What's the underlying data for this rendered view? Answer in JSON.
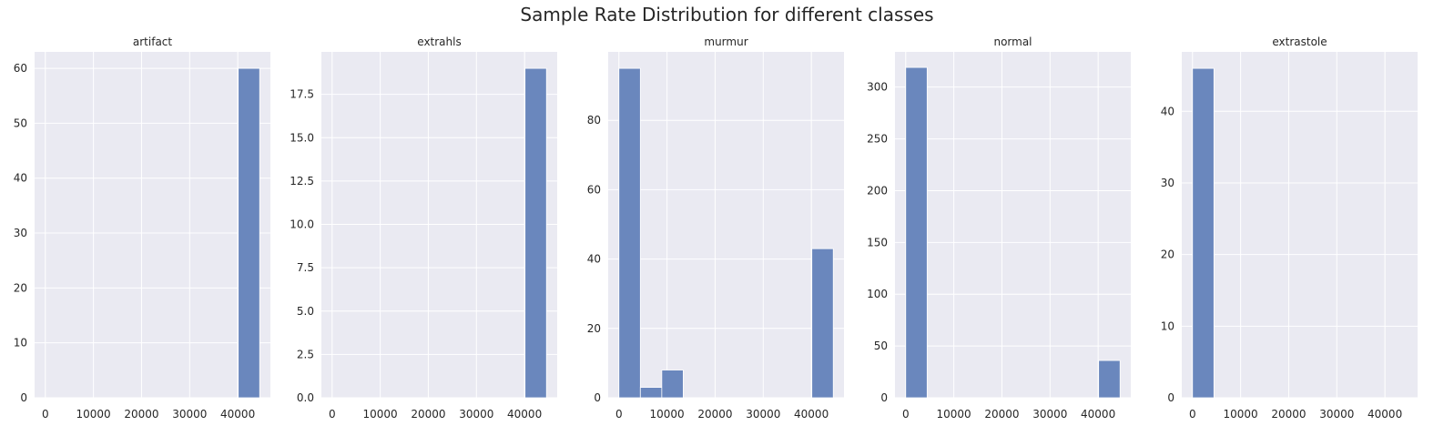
{
  "figure_title": "Sample Rate Distribution for different classes",
  "colors": {
    "panel_bg": "#eaeaf2",
    "grid": "#ffffff",
    "bar": "#6a87bd",
    "bar_edge": "#ffffff",
    "text": "#262626"
  },
  "chart_data": [
    {
      "type": "bar",
      "title": "artifact",
      "xlabel": "",
      "ylabel": "",
      "grid": true,
      "xlim": [
        -2228,
        46787
      ],
      "ylim": [
        0,
        63
      ],
      "x_ticks": [
        "0",
        "10000",
        "20000",
        "30000",
        "40000"
      ],
      "y_ticks": [
        "0",
        "10",
        "20",
        "30",
        "40",
        "50",
        "60"
      ],
      "bins": [
        {
          "x0": 40100,
          "x1": 44559,
          "value": 60
        }
      ]
    },
    {
      "type": "bar",
      "title": "extrahls",
      "xlabel": "",
      "ylabel": "",
      "grid": true,
      "xlim": [
        -2228,
        46787
      ],
      "ylim": [
        0,
        19.95
      ],
      "x_ticks": [
        "0",
        "10000",
        "20000",
        "30000",
        "40000"
      ],
      "y_ticks": [
        "0.0",
        "2.5",
        "5.0",
        "7.5",
        "10.0",
        "12.5",
        "15.0",
        "17.5"
      ],
      "bins": [
        {
          "x0": 40100,
          "x1": 44559,
          "value": 19
        }
      ]
    },
    {
      "type": "bar",
      "title": "murmur",
      "xlabel": "",
      "ylabel": "",
      "grid": true,
      "xlim": [
        -2228,
        46787
      ],
      "ylim": [
        0,
        99.75
      ],
      "x_ticks": [
        "0",
        "10000",
        "20000",
        "30000",
        "40000"
      ],
      "y_ticks": [
        "0",
        "20",
        "40",
        "60",
        "80"
      ],
      "bins": [
        {
          "x0": 0,
          "x1": 4456,
          "value": 95
        },
        {
          "x0": 4456,
          "x1": 8912,
          "value": 3
        },
        {
          "x0": 8912,
          "x1": 13368,
          "value": 8
        },
        {
          "x0": 13368,
          "x1": 17824,
          "value": 0
        },
        {
          "x0": 17824,
          "x1": 22280,
          "value": 0
        },
        {
          "x0": 22280,
          "x1": 26735,
          "value": 0
        },
        {
          "x0": 26735,
          "x1": 31191,
          "value": 0
        },
        {
          "x0": 31191,
          "x1": 35647,
          "value": 0
        },
        {
          "x0": 35647,
          "x1": 40103,
          "value": 0
        },
        {
          "x0": 40103,
          "x1": 44559,
          "value": 43
        }
      ]
    },
    {
      "type": "bar",
      "title": "normal",
      "xlabel": "",
      "ylabel": "",
      "grid": true,
      "xlim": [
        -2228,
        46787
      ],
      "ylim": [
        0,
        334
      ],
      "x_ticks": [
        "0",
        "10000",
        "20000",
        "30000",
        "40000"
      ],
      "y_ticks": [
        "0",
        "50",
        "100",
        "150",
        "200",
        "250",
        "300"
      ],
      "bins": [
        {
          "x0": 0,
          "x1": 4456,
          "value": 319
        },
        {
          "x0": 4456,
          "x1": 8912,
          "value": 0
        },
        {
          "x0": 8912,
          "x1": 13368,
          "value": 0
        },
        {
          "x0": 13368,
          "x1": 17824,
          "value": 0
        },
        {
          "x0": 17824,
          "x1": 22280,
          "value": 0
        },
        {
          "x0": 22280,
          "x1": 26735,
          "value": 0
        },
        {
          "x0": 26735,
          "x1": 31191,
          "value": 0
        },
        {
          "x0": 31191,
          "x1": 35647,
          "value": 0
        },
        {
          "x0": 35647,
          "x1": 40103,
          "value": 0
        },
        {
          "x0": 40103,
          "x1": 44559,
          "value": 36
        }
      ]
    },
    {
      "type": "bar",
      "title": "extrastole",
      "xlabel": "",
      "ylabel": "",
      "grid": true,
      "xlim": [
        -2228,
        46787
      ],
      "ylim": [
        0,
        48.3
      ],
      "x_ticks": [
        "0",
        "10000",
        "20000",
        "30000",
        "40000"
      ],
      "y_ticks": [
        "0",
        "10",
        "20",
        "30",
        "40"
      ],
      "bins": [
        {
          "x0": 0,
          "x1": 4456,
          "value": 46
        }
      ]
    }
  ]
}
